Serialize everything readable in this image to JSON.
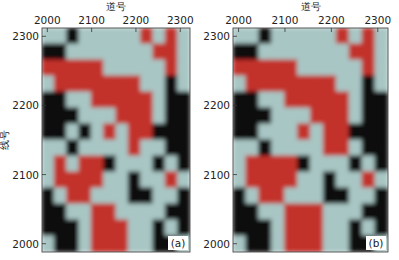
{
  "chart_data": [
    {
      "type": "heatmap",
      "xlabel": "道号",
      "ylabel": "线号",
      "annotation": "(a)",
      "xlim": [
        1988,
        2322
      ],
      "ylim": [
        1988,
        2312
      ],
      "xticks": [
        2000,
        2100,
        2200,
        2300
      ],
      "yticks": [
        2000,
        2100,
        2200,
        2300
      ],
      "colors": [
        "#0d0d0d",
        "#a8c6c4",
        "#c2302a"
      ],
      "cells": [
        [
          1,
          1,
          0,
          1,
          1,
          1,
          1,
          1,
          2,
          1,
          2,
          1
        ],
        [
          0,
          0,
          1,
          1,
          1,
          1,
          1,
          1,
          1,
          2,
          2,
          1
        ],
        [
          2,
          2,
          2,
          2,
          2,
          1,
          1,
          1,
          1,
          1,
          2,
          1
        ],
        [
          1,
          2,
          2,
          2,
          2,
          2,
          2,
          2,
          1,
          1,
          0,
          1
        ],
        [
          0,
          0,
          1,
          1,
          2,
          2,
          2,
          2,
          2,
          1,
          0,
          0
        ],
        [
          0,
          0,
          0,
          1,
          1,
          1,
          2,
          2,
          2,
          1,
          0,
          0
        ],
        [
          0,
          0,
          1,
          0,
          1,
          2,
          1,
          2,
          2,
          0,
          0,
          0
        ],
        [
          1,
          1,
          0,
          1,
          1,
          1,
          1,
          2,
          1,
          1,
          0,
          0
        ],
        [
          1,
          2,
          1,
          2,
          2,
          0,
          1,
          1,
          1,
          0,
          1,
          0
        ],
        [
          1,
          2,
          2,
          2,
          2,
          1,
          1,
          0,
          1,
          1,
          2,
          1
        ],
        [
          0,
          1,
          2,
          2,
          1,
          1,
          1,
          0,
          0,
          1,
          1,
          0
        ],
        [
          0,
          0,
          1,
          1,
          2,
          2,
          1,
          1,
          1,
          1,
          0,
          0
        ],
        [
          0,
          0,
          0,
          1,
          2,
          2,
          2,
          1,
          1,
          0,
          1,
          0
        ],
        [
          1,
          0,
          0,
          1,
          2,
          2,
          2,
          1,
          1,
          0,
          0,
          1
        ]
      ]
    },
    {
      "type": "heatmap",
      "xlabel": "道号",
      "annotation": "(b)",
      "xlim": [
        1988,
        2322
      ],
      "ylim": [
        1988,
        2312
      ],
      "xticks": [
        2000,
        2100,
        2200,
        2300
      ],
      "yticks": [
        2000,
        2100,
        2200,
        2300
      ],
      "colors": [
        "#0d0d0d",
        "#a8c6c4",
        "#c2302a"
      ],
      "cells": [
        [
          1,
          1,
          0,
          1,
          1,
          1,
          1,
          1,
          2,
          1,
          2,
          1
        ],
        [
          0,
          0,
          1,
          1,
          1,
          1,
          1,
          1,
          1,
          2,
          2,
          1
        ],
        [
          2,
          2,
          2,
          2,
          2,
          1,
          1,
          1,
          1,
          1,
          2,
          1
        ],
        [
          1,
          2,
          2,
          2,
          2,
          2,
          2,
          2,
          1,
          1,
          0,
          1
        ],
        [
          0,
          0,
          1,
          1,
          2,
          2,
          2,
          2,
          2,
          1,
          0,
          0
        ],
        [
          0,
          0,
          0,
          1,
          1,
          1,
          2,
          2,
          2,
          1,
          0,
          0
        ],
        [
          0,
          0,
          1,
          1,
          1,
          2,
          1,
          2,
          2,
          0,
          0,
          0
        ],
        [
          1,
          1,
          0,
          1,
          1,
          1,
          1,
          2,
          2,
          1,
          0,
          0
        ],
        [
          1,
          2,
          2,
          2,
          2,
          0,
          1,
          1,
          1,
          0,
          1,
          0
        ],
        [
          1,
          2,
          2,
          2,
          2,
          1,
          1,
          0,
          1,
          1,
          2,
          1
        ],
        [
          0,
          1,
          2,
          2,
          1,
          1,
          1,
          0,
          0,
          1,
          1,
          0
        ],
        [
          0,
          0,
          1,
          1,
          2,
          2,
          2,
          1,
          1,
          1,
          0,
          0
        ],
        [
          0,
          0,
          0,
          1,
          2,
          2,
          2,
          1,
          1,
          0,
          1,
          0
        ],
        [
          1,
          0,
          0,
          1,
          2,
          2,
          2,
          1,
          1,
          0,
          0,
          1
        ]
      ]
    }
  ]
}
